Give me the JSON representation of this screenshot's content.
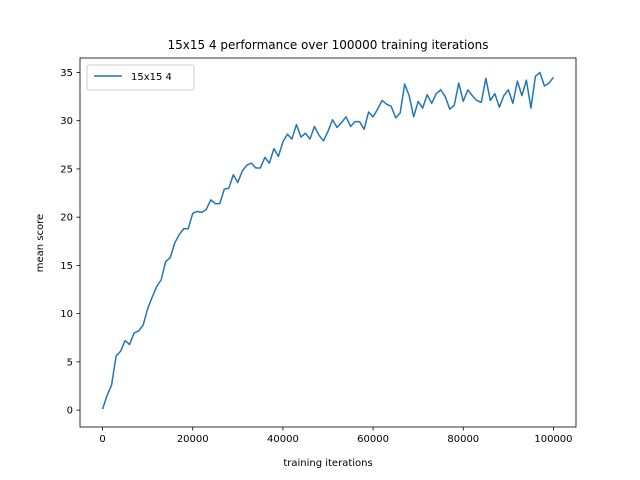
{
  "chart_data": {
    "type": "line",
    "title": "15x15 4 performance over 100000 training iterations",
    "xlabel": "training iterations",
    "ylabel": "mean score",
    "xlim": [
      -5000,
      105000
    ],
    "ylim": [
      -1.75,
      36.5
    ],
    "xticks": [
      0,
      20000,
      40000,
      60000,
      80000,
      100000
    ],
    "yticks": [
      0,
      5,
      10,
      15,
      20,
      25,
      30,
      35
    ],
    "grid": false,
    "legend_position": "top-left",
    "colors": {
      "series": "#1f77b4"
    },
    "series": [
      {
        "name": "15x15 4",
        "x": [
          0,
          1000,
          2000,
          3000,
          4000,
          5000,
          6000,
          7000,
          8000,
          9000,
          10000,
          11000,
          12000,
          13000,
          14000,
          15000,
          16000,
          17000,
          18000,
          19000,
          20000,
          21000,
          22000,
          23000,
          24000,
          25000,
          26000,
          27000,
          28000,
          29000,
          30000,
          31000,
          32000,
          33000,
          34000,
          35000,
          36000,
          37000,
          38000,
          39000,
          40000,
          41000,
          42000,
          43000,
          44000,
          45000,
          46000,
          47000,
          48000,
          49000,
          50000,
          51000,
          52000,
          53000,
          54000,
          55000,
          56000,
          57000,
          58000,
          59000,
          60000,
          61000,
          62000,
          63000,
          64000,
          65000,
          66000,
          67000,
          68000,
          69000,
          70000,
          71000,
          72000,
          73000,
          74000,
          75000,
          76000,
          77000,
          78000,
          79000,
          80000,
          81000,
          82000,
          83000,
          84000,
          85000,
          86000,
          87000,
          88000,
          89000,
          90000,
          91000,
          92000,
          93000,
          94000,
          95000,
          96000,
          97000,
          98000,
          99000,
          100000
        ],
        "values": [
          0.1,
          1.5,
          2.6,
          5.6,
          6.1,
          7.2,
          6.8,
          8.0,
          8.2,
          8.8,
          10.5,
          11.7,
          12.8,
          13.5,
          15.4,
          15.8,
          17.3,
          18.2,
          18.8,
          18.8,
          20.4,
          20.6,
          20.5,
          20.8,
          21.8,
          21.4,
          21.4,
          22.9,
          23.0,
          24.4,
          23.6,
          24.8,
          25.4,
          25.6,
          25.1,
          25.1,
          26.2,
          25.6,
          27.1,
          26.3,
          27.8,
          28.6,
          28.1,
          29.6,
          28.3,
          28.7,
          28.1,
          29.4,
          28.5,
          27.9,
          28.9,
          30.1,
          29.3,
          29.8,
          30.4,
          29.4,
          29.9,
          29.9,
          29.1,
          30.9,
          30.4,
          31.2,
          32.1,
          31.7,
          31.5,
          30.3,
          30.8,
          33.8,
          32.6,
          30.4,
          32.0,
          31.3,
          32.7,
          31.8,
          32.8,
          33.2,
          32.5,
          31.2,
          31.6,
          33.9,
          32.0,
          33.2,
          32.6,
          32.1,
          31.9,
          34.4,
          32.1,
          32.8,
          31.4,
          32.6,
          33.2,
          31.8,
          34.1,
          32.6,
          34.2,
          31.3,
          34.6,
          35.0,
          33.6,
          33.9,
          34.5
        ]
      }
    ]
  }
}
